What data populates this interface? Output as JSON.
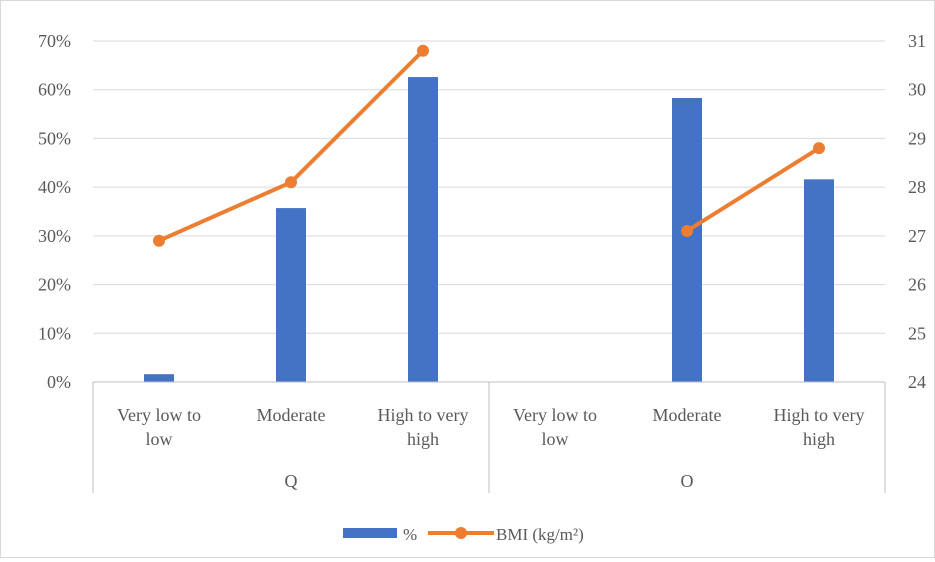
{
  "chart_data": {
    "type": "bar",
    "groups": [
      "Q",
      "O"
    ],
    "categories": [
      [
        "Very low to",
        "low"
      ],
      [
        "Moderate"
      ],
      [
        "High to very",
        "high"
      ],
      [
        "Very low to",
        "low"
      ],
      [
        "Moderate"
      ],
      [
        "High to very",
        "high"
      ]
    ],
    "series": [
      {
        "name": "%",
        "type": "bar",
        "axis": "left",
        "color": "#4472c4",
        "values": [
          1.6,
          35.7,
          62.6,
          null,
          58.3,
          41.6
        ]
      },
      {
        "name": "BMI (kg/m²)",
        "type": "line",
        "axis": "right",
        "color": "#ed7d31",
        "values": [
          26.9,
          28.1,
          30.8,
          null,
          27.1,
          28.8
        ]
      }
    ],
    "y_left": {
      "min": 0,
      "max": 70,
      "step": 10,
      "ticks": [
        "0%",
        "10%",
        "20%",
        "30%",
        "40%",
        "50%",
        "60%",
        "70%"
      ]
    },
    "y_right": {
      "min": 24,
      "max": 31,
      "step": 1,
      "ticks": [
        "24",
        "25",
        "26",
        "27",
        "28",
        "29",
        "30",
        "31"
      ]
    },
    "grid": true,
    "legend_position": "bottom"
  }
}
